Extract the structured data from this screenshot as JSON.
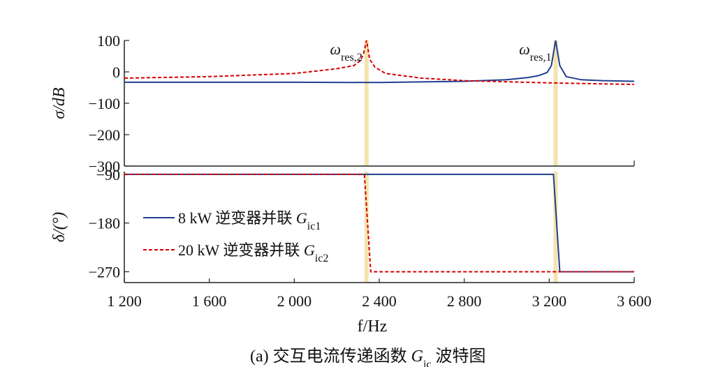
{
  "chart_data": [
    {
      "type": "line",
      "panel": "magnitude",
      "ylabel": "σ/dB",
      "ylim": [
        -300,
        100
      ],
      "yticks": [
        100,
        0,
        -100,
        -200,
        -300
      ],
      "ytick_labels": [
        "100",
        "0",
        "−100",
        "−200",
        "−300"
      ],
      "xlim": [
        1200,
        3600
      ],
      "annotations": [
        {
          "text": "ωres,2",
          "x": 2340
        },
        {
          "text": "ωres,1",
          "x": 3230
        }
      ],
      "highlight_x": [
        2340,
        3230
      ],
      "series": [
        {
          "name": "8 kW 逆变器并联 Gic1",
          "color": "#1f3f8f",
          "style": "solid",
          "x": [
            1200,
            1600,
            2000,
            2400,
            2800,
            3000,
            3100,
            3150,
            3190,
            3210,
            3230,
            3250,
            3280,
            3350,
            3450,
            3600
          ],
          "y": [
            -33,
            -33,
            -33,
            -34,
            -30,
            -25,
            -18,
            -12,
            -2,
            20,
            100,
            20,
            -15,
            -25,
            -28,
            -30
          ]
        },
        {
          "name": "20 kW 逆变器并联 Gic2",
          "color": "#d40000",
          "style": "dashed",
          "x": [
            1200,
            1600,
            2000,
            2200,
            2280,
            2310,
            2325,
            2340,
            2355,
            2380,
            2430,
            2600,
            2800,
            3200,
            3600
          ],
          "y": [
            -20,
            -15,
            -5,
            10,
            20,
            35,
            55,
            100,
            40,
            15,
            -5,
            -20,
            -28,
            -35,
            -40
          ]
        }
      ]
    },
    {
      "type": "line",
      "panel": "phase",
      "ylabel": "δ/(°)",
      "ylim": [
        -290,
        -85
      ],
      "yticks": [
        -90,
        -180,
        -270
      ],
      "ytick_labels": [
        "−90",
        "−180",
        "−270"
      ],
      "xlabel": "f/Hz",
      "xlim": [
        1200,
        3600
      ],
      "xticks": [
        1200,
        1600,
        2000,
        2400,
        2800,
        3200,
        3600
      ],
      "xtick_labels": [
        "1 200",
        "1 600",
        "2 000",
        "2 400",
        "2 800",
        "3 200",
        "3 600"
      ],
      "highlight_x": [
        2340,
        3230
      ],
      "series": [
        {
          "name": "8 kW 逆变器并联 Gic1",
          "color": "#1f3f8f",
          "style": "solid",
          "x": [
            1200,
            3220,
            3250,
            3600
          ],
          "y": [
            -90,
            -90,
            -270,
            -270
          ]
        },
        {
          "name": "20 kW 逆变器并联 Gic2",
          "color": "#d40000",
          "style": "dashed",
          "x": [
            1200,
            2330,
            2360,
            3600
          ],
          "y": [
            -90,
            -90,
            -270,
            -270
          ]
        }
      ]
    }
  ],
  "legend": {
    "position": "lower-left of phase panel",
    "items": [
      {
        "prefix": "8 kW 逆变器并联 ",
        "var": "G",
        "sub": "ic1"
      },
      {
        "prefix": "20 kW 逆变器并联 ",
        "var": "G",
        "sub": "ic2"
      }
    ]
  },
  "caption": {
    "prefix": "(a)  交互电流传递函数 ",
    "var": "G",
    "sub": "ic",
    "suffix": " 波特图"
  }
}
